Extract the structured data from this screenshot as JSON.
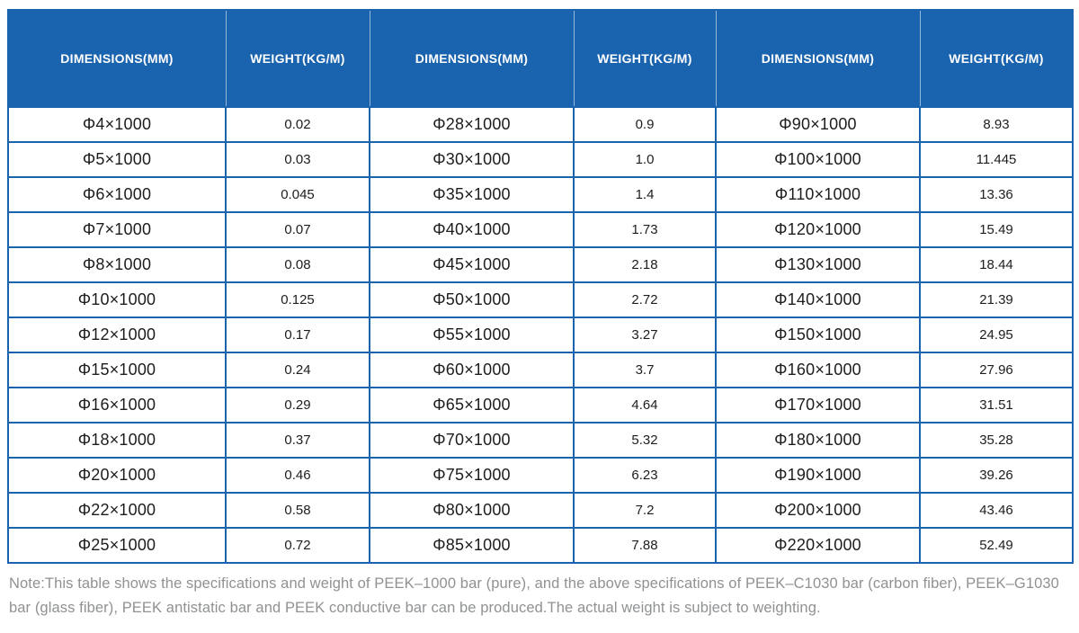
{
  "colors": {
    "header_bg": "#1a63ae",
    "table_border": "#1a63ae",
    "body_text": "#1d1d1f",
    "note_text": "#8f9193"
  },
  "table": {
    "headers": [
      "DIMENSIONS(MM)",
      "WEIGHT(KG/M)",
      "DIMENSIONS(MM)",
      "WEIGHT(KG/M)",
      "DIMENSIONS(MM)",
      "WEIGHT(KG/M)"
    ],
    "rows": [
      [
        "Φ4×1000",
        "0.02",
        "Φ28×1000",
        "0.9",
        "Φ90×1000",
        "8.93"
      ],
      [
        "Φ5×1000",
        "0.03",
        "Φ30×1000",
        "1.0",
        "Φ100×1000",
        "11.445"
      ],
      [
        "Φ6×1000",
        "0.045",
        "Φ35×1000",
        "1.4",
        "Φ110×1000",
        "13.36"
      ],
      [
        "Φ7×1000",
        "0.07",
        "Φ40×1000",
        "1.73",
        "Φ120×1000",
        "15.49"
      ],
      [
        "Φ8×1000",
        "0.08",
        "Φ45×1000",
        "2.18",
        "Φ130×1000",
        "18.44"
      ],
      [
        "Φ10×1000",
        "0.125",
        "Φ50×1000",
        "2.72",
        "Φ140×1000",
        "21.39"
      ],
      [
        "Φ12×1000",
        "0.17",
        "Φ55×1000",
        "3.27",
        "Φ150×1000",
        "24.95"
      ],
      [
        "Φ15×1000",
        "0.24",
        "Φ60×1000",
        "3.7",
        "Φ160×1000",
        "27.96"
      ],
      [
        "Φ16×1000",
        "0.29",
        "Φ65×1000",
        "4.64",
        "Φ170×1000",
        "31.51"
      ],
      [
        "Φ18×1000",
        "0.37",
        "Φ70×1000",
        "5.32",
        "Φ180×1000",
        "35.28"
      ],
      [
        "Φ20×1000",
        "0.46",
        "Φ75×1000",
        "6.23",
        "Φ190×1000",
        "39.26"
      ],
      [
        "Φ22×1000",
        "0.58",
        "Φ80×1000",
        "7.2",
        "Φ200×1000",
        "43.46"
      ],
      [
        "Φ25×1000",
        "0.72",
        "Φ85×1000",
        "7.88",
        "Φ220×1000",
        "52.49"
      ]
    ]
  },
  "note": "Note:This table shows the specifications and weight of PEEK–1000 bar (pure), and the above specifications of PEEK–C1030 bar (carbon fiber), PEEK–G1030 bar (glass fiber), PEEK antistatic bar and PEEK conductive bar can be produced.The actual weight is subject to weighting."
}
